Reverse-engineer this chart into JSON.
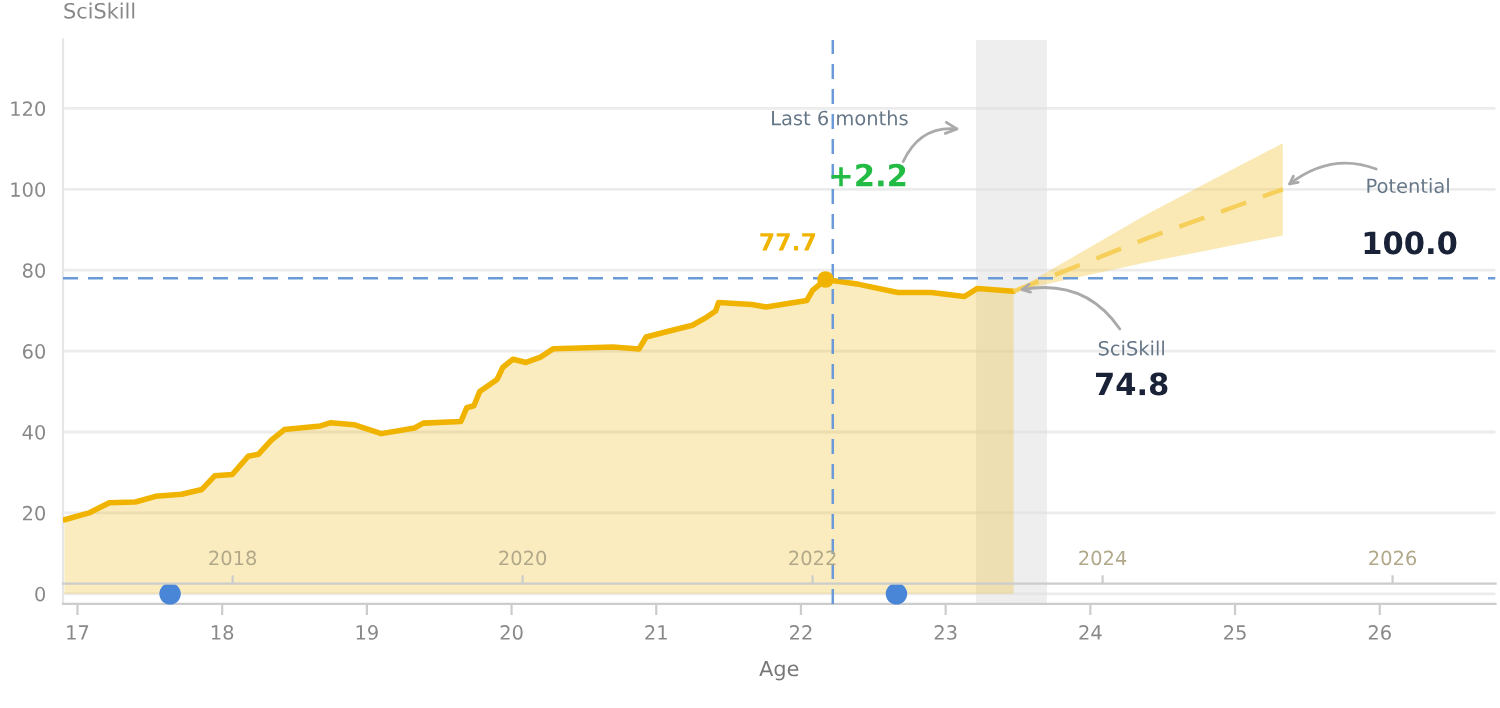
{
  "chart_data": {
    "type": "area",
    "xlabel": "Age",
    "ylabel": "SciSkill",
    "xlim": [
      16.9,
      26.8
    ],
    "xticks": [
      17,
      18,
      19,
      20,
      21,
      22,
      23,
      24,
      25,
      26
    ],
    "x2lim": [
      2016.83,
      2026.71
    ],
    "x2ticks": [
      2018,
      2020,
      2022,
      2024,
      2026
    ],
    "ylim": [
      -2.5,
      137
    ],
    "yticks": [
      0,
      20,
      40,
      60,
      80,
      100,
      120
    ],
    "grid": "y",
    "legend": false,
    "series": [
      {
        "color": "#f0b400",
        "x": [
          16.91,
          17.08,
          17.22,
          17.4,
          17.54,
          17.72,
          17.86,
          17.95,
          18.07,
          18.18,
          18.25,
          18.34,
          18.43,
          18.68,
          18.75,
          18.91,
          19.1,
          19.33,
          19.39,
          19.65,
          19.69,
          19.74,
          19.78,
          19.9,
          19.94,
          20.01,
          20.1,
          20.2,
          20.29,
          20.7,
          20.88,
          20.93,
          21.07,
          21.25,
          21.34,
          21.41,
          21.43,
          21.66,
          21.76,
          22.04,
          22.08,
          22.17,
          22.4,
          22.67,
          22.9,
          23.13,
          23.22,
          23.47
        ],
        "values": [
          18.3,
          20,
          22.5,
          22.7,
          24.1,
          24.6,
          25.8,
          29.2,
          29.5,
          34,
          34.5,
          38,
          40.6,
          41.5,
          42.3,
          41.8,
          39.6,
          41,
          42.2,
          42.6,
          46,
          46.5,
          50,
          53,
          56,
          58,
          57.2,
          58.5,
          60.6,
          61,
          60.5,
          63.5,
          64.8,
          66.4,
          68.2,
          69.9,
          72,
          71.5,
          70.9,
          72.5,
          75,
          77.7,
          76.5,
          74.5,
          74.5,
          73.5,
          75.5,
          74.8
        ]
      },
      {
        "type": "line",
        "line_style": "dashed",
        "color": "#f5cf5a",
        "x": [
          23.47,
          24.4,
          25.33
        ],
        "values": [
          74.8,
          88,
          100
        ],
        "lower": [
          74.8,
          82,
          88.6
        ],
        "upper": [
          74.8,
          94,
          111.4
        ]
      },
      {
        "type": "scatter",
        "marker": "circle",
        "color": "#4a86d8",
        "x": [
          17.64,
          22.66
        ],
        "values": [
          0,
          0
        ]
      }
    ],
    "ref_lines": [
      {
        "axis": "x",
        "value": 22.22,
        "color": "#6a9bd8",
        "line_style": "dashed"
      },
      {
        "axis": "y",
        "value": 78,
        "color": "#6a9bd8",
        "line_style": "dashed"
      }
    ],
    "bands": [
      {
        "axis": "x",
        "from": 23.21,
        "to": 23.7,
        "color": "#dedede"
      }
    ],
    "annotations": [
      {
        "text": "77.7",
        "x": 22.17,
        "y": 77.7
      },
      {
        "text": "SciSkill",
        "x": 23.47,
        "y": 74.8
      },
      {
        "text": "Potential",
        "x": 25.33,
        "y": 100
      },
      "74.8",
      "100.0",
      "Last 6 months",
      "+2.2"
    ]
  }
}
